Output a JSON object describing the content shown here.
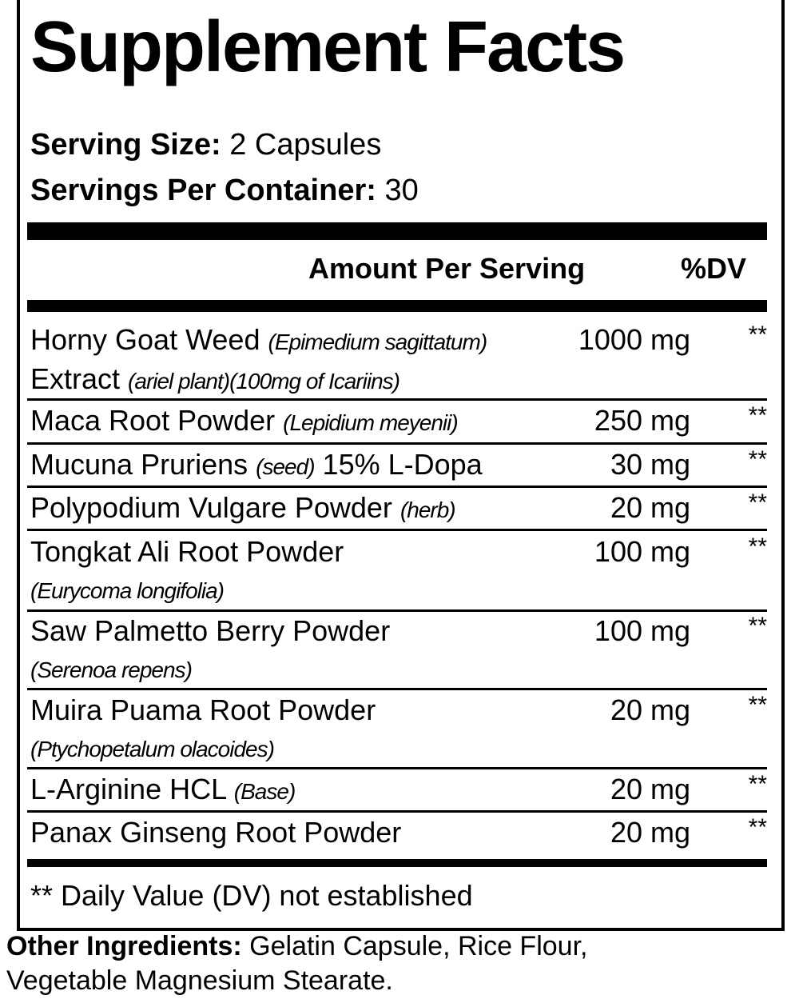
{
  "title": "Supplement Facts",
  "serving_size": {
    "label": "Serving Size:",
    "value": "2 Capsules"
  },
  "servings_per_container": {
    "label": "Servings Per Container:",
    "value": "30"
  },
  "header": {
    "amount": "Amount Per Serving",
    "dv": "%DV"
  },
  "rows": [
    {
      "name": "Horny Goat Weed",
      "latin": "(Epimedium sagittatum)",
      "name2": "Extract",
      "latin2": "(ariel plant)(100mg of Icariins)",
      "amount": "1000 mg",
      "dv": "**"
    },
    {
      "name": "Maca Root Powder",
      "latin": "(Lepidium meyenii)",
      "amount": "250 mg",
      "dv": "**"
    },
    {
      "name": "Mucuna Pruriens",
      "latin": "(seed)",
      "suffix": "15% L-Dopa",
      "amount": "30 mg",
      "dv": "**"
    },
    {
      "name": "Polypodium Vulgare Powder",
      "latin": "(herb)",
      "amount": "20 mg",
      "dv": "**"
    },
    {
      "name": "Tongkat Ali Root Powder",
      "latin2": "(Eurycoma longifolia)",
      "amount": "100 mg",
      "dv": "**"
    },
    {
      "name": "Saw Palmetto Berry Powder",
      "latin2": "(Serenoa repens)",
      "amount": "100 mg",
      "dv": "**"
    },
    {
      "name": "Muira Puama Root Powder",
      "latin2": "(Ptychopetalum olacoides)",
      "amount": "20 mg",
      "dv": "**"
    },
    {
      "name": "L-Arginine HCL",
      "latin": "(Base)",
      "amount": "20 mg",
      "dv": "**"
    },
    {
      "name": "Panax Ginseng Root Powder",
      "amount": "20 mg",
      "dv": "**"
    }
  ],
  "footnote": "** Daily Value (DV) not established",
  "other_ingredients": {
    "label": "Other Ingredients:",
    "line1": "Gelatin Capsule, Rice Flour,",
    "line2": "Vegetable Magnesium Stearate."
  }
}
